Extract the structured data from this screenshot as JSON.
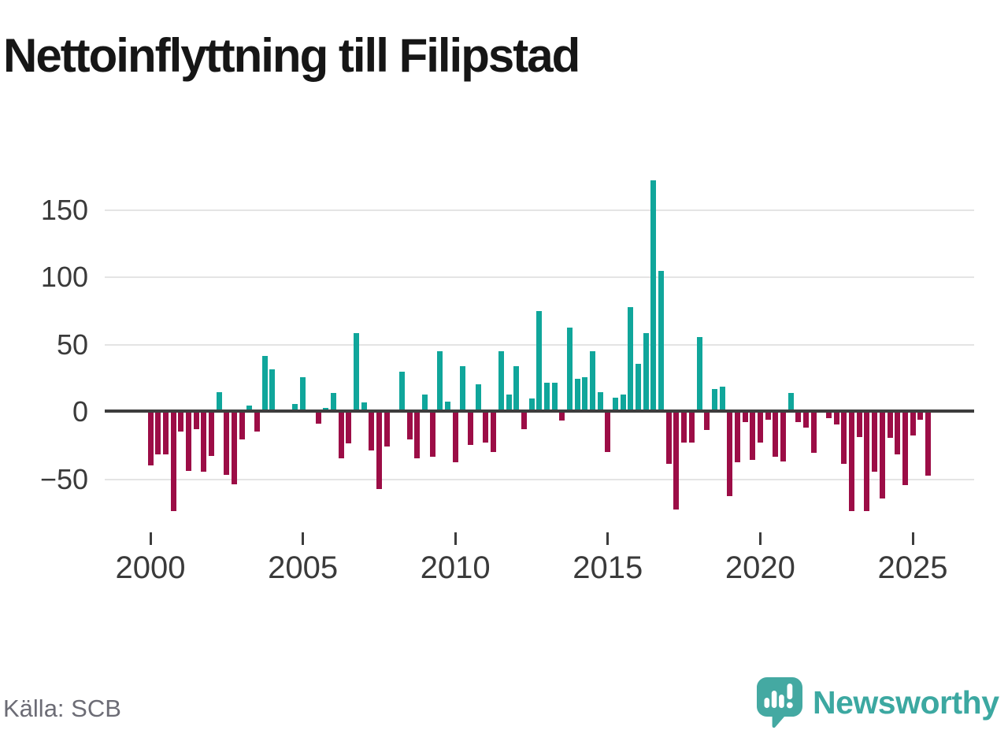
{
  "title": "Nettoinflyttning till Filipstad",
  "source": "Källa: SCB",
  "logo": {
    "text": "Newsworthy",
    "icon": "newsworthy-bubble-barchart-icon",
    "color": "#3ca8a1"
  },
  "colors": {
    "positive_bar": "#10a69b",
    "negative_bar": "#9c0d46",
    "axis": "#3d3d3d",
    "gridline": "#e4e4e4",
    "tick_text": "#3a3a3a",
    "source_text": "#6c6c75"
  },
  "chart_data": {
    "type": "bar",
    "title": "Nettoinflyttning till Filipstad",
    "xlabel": "",
    "ylabel": "",
    "frequency": "quarterly",
    "start_period": "2000 Q1",
    "end_period": "2025 Q3",
    "x_tick_labels": [
      "2000",
      "2005",
      "2010",
      "2015",
      "2020",
      "2025"
    ],
    "y_ticks": [
      150,
      100,
      50,
      0,
      -50
    ],
    "ylim": [
      -80,
      180
    ],
    "grid": "horizontal",
    "legend": "none",
    "values": [
      -39,
      -31,
      -31,
      -73,
      -14,
      -43,
      -12,
      -44,
      -32,
      13,
      -46,
      -53,
      -20,
      3,
      -14,
      40,
      30,
      0,
      0,
      4,
      24,
      0,
      -8,
      1,
      12,
      -34,
      -23,
      57,
      5,
      -28,
      -57,
      -25,
      0,
      28,
      -20,
      -34,
      11,
      -33,
      43,
      6,
      -37,
      32,
      -24,
      19,
      -22,
      -29,
      43,
      11,
      32,
      -12,
      8,
      73,
      20,
      20,
      -6,
      61,
      23,
      24,
      43,
      13,
      -29,
      9,
      11,
      76,
      34,
      57,
      170,
      103,
      -38,
      -72,
      -22,
      -22,
      54,
      -13,
      15,
      17,
      -62,
      -37,
      -7,
      -35,
      -22,
      -5,
      -33,
      -36,
      12,
      -7,
      -11,
      -30,
      0,
      -4,
      -9,
      -38,
      -73,
      -18,
      -73,
      -44,
      -64,
      -19,
      -31,
      -54,
      -17,
      -5,
      -47
    ]
  }
}
